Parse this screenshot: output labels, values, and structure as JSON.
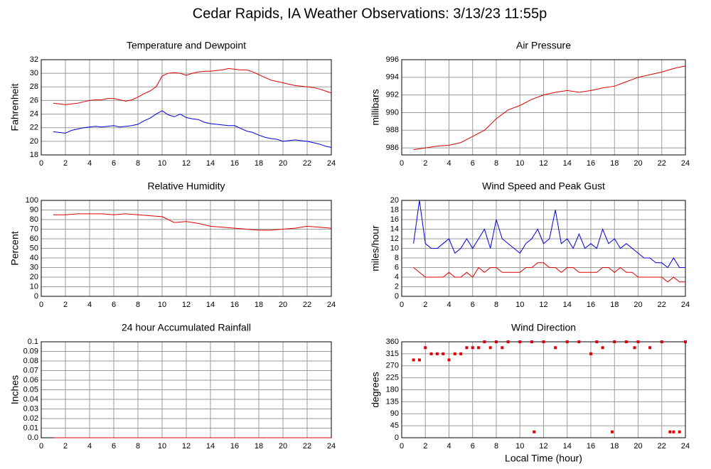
{
  "title": "Cedar Rapids, IA Weather Observations: 3/13/23 11:55p",
  "chart_data": [
    {
      "type": "line",
      "title": "Temperature and Dewpoint",
      "ylabel": "Fahrenheit",
      "xlim": [
        0,
        24
      ],
      "xticks": [
        0,
        2,
        4,
        6,
        8,
        10,
        12,
        14,
        16,
        18,
        20,
        22,
        24
      ],
      "ylim": [
        18,
        32
      ],
      "yticks": [
        18,
        20,
        22,
        24,
        26,
        28,
        30,
        32
      ],
      "grid": true,
      "x": [
        1,
        1.5,
        2,
        2.5,
        3,
        3.5,
        4,
        4.5,
        5,
        5.5,
        6,
        6.5,
        7,
        7.5,
        8,
        8.5,
        9,
        9.5,
        10,
        10.5,
        11,
        11.5,
        12,
        12.5,
        13,
        13.5,
        14,
        14.5,
        15,
        15.5,
        16,
        16.5,
        17,
        17.5,
        18,
        18.5,
        19,
        19.5,
        20,
        20.5,
        21,
        21.5,
        22,
        22.5,
        23,
        23.5,
        24
      ],
      "series": [
        {
          "color": "#e00000",
          "values": [
            25.6,
            25.5,
            25.4,
            25.5,
            25.6,
            25.8,
            26.0,
            26.1,
            26.1,
            26.3,
            26.3,
            26.1,
            25.9,
            26.1,
            26.5,
            27.0,
            27.4,
            28.0,
            29.6,
            30.0,
            30.1,
            30.0,
            29.7,
            30.0,
            30.2,
            30.3,
            30.3,
            30.4,
            30.5,
            30.7,
            30.6,
            30.5,
            30.5,
            30.2,
            29.8,
            29.4,
            29.0,
            28.8,
            28.6,
            28.4,
            28.2,
            28.1,
            28.0,
            27.9,
            27.7,
            27.4,
            27.1
          ]
        },
        {
          "color": "#0000e0",
          "values": [
            21.4,
            21.3,
            21.2,
            21.6,
            21.8,
            22.0,
            22.1,
            22.2,
            22.1,
            22.2,
            22.3,
            22.1,
            22.2,
            22.3,
            22.5,
            23.0,
            23.4,
            24.0,
            24.5,
            23.9,
            23.6,
            24.0,
            23.5,
            23.3,
            23.2,
            22.8,
            22.6,
            22.5,
            22.4,
            22.3,
            22.3,
            21.9,
            21.5,
            21.3,
            20.9,
            20.6,
            20.4,
            20.3,
            20.0,
            20.1,
            20.2,
            20.1,
            20.0,
            19.8,
            19.6,
            19.3,
            19.1
          ]
        }
      ]
    },
    {
      "type": "line",
      "title": "Air Pressure",
      "ylabel": "millibars",
      "xlim": [
        0,
        24
      ],
      "xticks": [
        0,
        2,
        4,
        6,
        8,
        10,
        12,
        14,
        16,
        18,
        20,
        22,
        24
      ],
      "ylim": [
        985.2,
        996
      ],
      "yticks": [
        986,
        988,
        990,
        992,
        994,
        996
      ],
      "grid": true,
      "x": [
        1,
        2,
        3,
        4,
        5,
        6,
        7,
        8,
        9,
        10,
        11,
        12,
        13,
        14,
        15,
        16,
        17,
        18,
        19,
        20,
        21,
        22,
        23,
        24
      ],
      "series": [
        {
          "color": "#e00000",
          "values": [
            985.8,
            986.0,
            986.2,
            986.3,
            986.6,
            987.3,
            988.0,
            989.3,
            990.3,
            990.8,
            991.5,
            992.0,
            992.3,
            992.5,
            992.3,
            992.5,
            992.8,
            993.0,
            993.5,
            994.0,
            994.3,
            994.6,
            995.0,
            995.3
          ]
        }
      ]
    },
    {
      "type": "line",
      "title": "Relative Humidity",
      "ylabel": "Percent",
      "xlim": [
        0,
        24
      ],
      "xticks": [
        0,
        2,
        4,
        6,
        8,
        10,
        12,
        14,
        16,
        18,
        20,
        22,
        24
      ],
      "ylim": [
        0,
        100
      ],
      "yticks": [
        0,
        10,
        20,
        30,
        40,
        50,
        60,
        70,
        80,
        90,
        100
      ],
      "grid": true,
      "x": [
        1,
        2,
        3,
        4,
        5,
        6,
        7,
        8,
        9,
        10,
        11,
        12,
        13,
        14,
        15,
        16,
        17,
        18,
        19,
        20,
        21,
        22,
        23,
        24
      ],
      "series": [
        {
          "color": "#e00000",
          "values": [
            85,
            85,
            86,
            86,
            86,
            85,
            86,
            85,
            84,
            83,
            77,
            78,
            76,
            73,
            72,
            71,
            70,
            69,
            69,
            70,
            71,
            73,
            72,
            71
          ]
        }
      ]
    },
    {
      "type": "line",
      "title": "Wind Speed and Peak Gust",
      "ylabel": "miles/hour",
      "xlim": [
        0,
        24
      ],
      "xticks": [
        0,
        2,
        4,
        6,
        8,
        10,
        12,
        14,
        16,
        18,
        20,
        22,
        24
      ],
      "ylim": [
        0,
        20
      ],
      "yticks": [
        0,
        2,
        4,
        6,
        8,
        10,
        12,
        14,
        16,
        18,
        20
      ],
      "grid": true,
      "x": [
        1,
        1.5,
        2,
        2.5,
        3,
        3.5,
        4,
        4.5,
        5,
        5.5,
        6,
        6.5,
        7,
        7.5,
        8,
        8.5,
        9,
        9.5,
        10,
        10.5,
        11,
        11.5,
        12,
        12.5,
        13,
        13.5,
        14,
        14.5,
        15,
        15.5,
        16,
        16.5,
        17,
        17.5,
        18,
        18.5,
        19,
        19.5,
        20,
        20.5,
        21,
        21.5,
        22,
        22.5,
        23,
        23.5,
        24
      ],
      "series": [
        {
          "color": "#e00000",
          "values": [
            6,
            5,
            4,
            4,
            4,
            4,
            5,
            4,
            4,
            5,
            4,
            6,
            5,
            6,
            6,
            5,
            5,
            5,
            5,
            6,
            6,
            7,
            7,
            6,
            6,
            5,
            6,
            6,
            5,
            5,
            5,
            5,
            6,
            6,
            5,
            6,
            5,
            5,
            4,
            4,
            4,
            4,
            4,
            3,
            4,
            3,
            3
          ]
        },
        {
          "color": "#0000e0",
          "values": [
            11,
            20,
            11,
            10,
            10,
            11,
            12,
            9,
            10,
            12,
            10,
            12,
            14,
            10,
            16,
            12,
            11,
            10,
            9,
            11,
            12,
            14,
            11,
            12,
            18,
            11,
            12,
            10,
            13,
            10,
            11,
            10,
            14,
            11,
            12,
            10,
            11,
            10,
            9,
            8,
            8,
            7,
            7,
            6,
            8,
            6,
            6
          ]
        }
      ]
    },
    {
      "type": "line",
      "title": "24 hour Accumulated Rainfall",
      "ylabel": "Inches",
      "xlim": [
        0,
        24
      ],
      "xticks": [
        0,
        2,
        4,
        6,
        8,
        10,
        12,
        14,
        16,
        18,
        20,
        22,
        24
      ],
      "ylim": [
        0,
        0.1
      ],
      "yticks": [
        {
          "value": 0,
          "label": "0.0"
        },
        0.01,
        0.02,
        0.03,
        0.04,
        0.05,
        0.06,
        0.07,
        0.08,
        0.09,
        0.1
      ],
      "grid": true,
      "x": [
        1,
        24
      ],
      "series": [
        {
          "color": "#e00000",
          "values": [
            0,
            0
          ]
        }
      ]
    },
    {
      "type": "scatter",
      "title": "Wind Direction",
      "ylabel": "degrees",
      "xlabel": "Local Time (hour)",
      "xlim": [
        0,
        24
      ],
      "xticks": [
        0,
        2,
        4,
        6,
        8,
        10,
        12,
        14,
        16,
        18,
        20,
        22,
        24
      ],
      "ylim": [
        0,
        360
      ],
      "yticks": [
        0,
        45,
        90,
        135,
        180,
        225,
        270,
        315,
        360
      ],
      "grid": true,
      "x": [
        1,
        1.5,
        2,
        2.5,
        3,
        3.5,
        4,
        4.5,
        5,
        5.5,
        6,
        6.5,
        7,
        7.5,
        8,
        8.5,
        9,
        10,
        11,
        11.2,
        12,
        13,
        14,
        15,
        16,
        16.5,
        17,
        17.8,
        18,
        19,
        19.7,
        20,
        21,
        22,
        22.7,
        23,
        23.5,
        24
      ],
      "series": [
        {
          "color": "#e00000",
          "values": [
            292,
            292,
            338,
            315,
            315,
            315,
            292,
            315,
            315,
            338,
            338,
            338,
            360,
            338,
            360,
            338,
            360,
            360,
            360,
            22,
            360,
            338,
            360,
            360,
            315,
            360,
            338,
            22,
            360,
            360,
            338,
            360,
            338,
            360,
            22,
            22,
            22,
            360
          ]
        }
      ]
    }
  ]
}
